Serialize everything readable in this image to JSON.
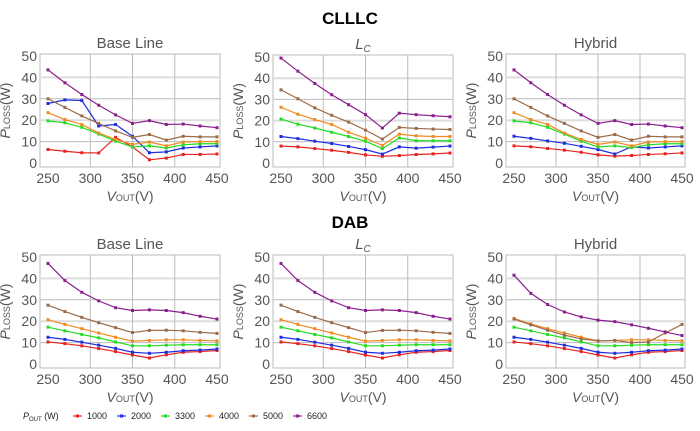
{
  "group_titles": [
    "CLLLC",
    "DAB"
  ],
  "legend": {
    "title_main": "P",
    "title_sub": "OUT",
    "title_unit": " (W)",
    "entries": [
      "1000",
      "2000",
      "3300",
      "4000",
      "5000",
      "6600"
    ],
    "colors": [
      "#e8211d",
      "#1f2de0",
      "#22dd22",
      "#f08a22",
      "#9a6b4a",
      "#8a1f8f"
    ],
    "placement": "bottom"
  },
  "chart_data": [
    {
      "type": "line",
      "group": "CLLLC",
      "title": "Base Line",
      "title_style": "plain",
      "xlabel_main": "V",
      "xlabel_sub": "OUT",
      "xlabel_unit": "(V)",
      "ylabel_main": "P",
      "ylabel_sub": "LOSS",
      "ylabel_unit": "(W)",
      "xlim": [
        250,
        450
      ],
      "ylim": [
        0,
        50
      ],
      "xticks": [
        250,
        300,
        350,
        400,
        450
      ],
      "yticks": [
        0,
        10,
        20,
        30,
        40,
        50
      ],
      "grid": true,
      "x": [
        250,
        270,
        290,
        310,
        330,
        350,
        370,
        390,
        410,
        430,
        450
      ],
      "series": [
        {
          "name": "1000",
          "values": [
            6.3,
            5.5,
            4.8,
            4.7,
            12,
            7.5,
            1.5,
            2.3,
            4,
            4,
            4.2
          ]
        },
        {
          "name": "2000",
          "values": [
            27.8,
            29.5,
            29.2,
            17.3,
            18,
            12.5,
            4.8,
            5.2,
            7,
            7.5,
            8
          ]
        },
        {
          "name": "3300",
          "values": [
            19.7,
            18.8,
            16.7,
            13.5,
            10.2,
            7.5,
            8,
            7,
            8.5,
            9,
            9
          ]
        },
        {
          "name": "4000",
          "values": [
            23.5,
            20.3,
            18,
            14,
            11,
            8.7,
            9.8,
            8,
            9.8,
            10,
            10
          ]
        },
        {
          "name": "5000",
          "values": [
            30,
            26,
            22,
            18.5,
            15,
            12,
            13.3,
            10.7,
            12.5,
            12.2,
            12.2
          ]
        },
        {
          "name": "6600",
          "values": [
            43.5,
            37.5,
            32,
            27,
            22.5,
            18.5,
            19.8,
            18,
            18.2,
            17.3,
            16.5
          ]
        }
      ]
    },
    {
      "type": "line",
      "group": "CLLLC",
      "title": "L",
      "title_sub": "C",
      "title_style": "italic",
      "xlabel_main": "V",
      "xlabel_sub": "OUT",
      "xlabel_unit": "(V)",
      "ylabel_main": "P",
      "ylabel_sub": "LOSS",
      "ylabel_unit": "(W)",
      "xlim": [
        250,
        450
      ],
      "ylim": [
        0,
        50
      ],
      "xticks": [
        250,
        300,
        350,
        400,
        450
      ],
      "yticks": [
        0,
        10,
        20,
        30,
        40,
        50
      ],
      "grid": true,
      "x": [
        250,
        270,
        290,
        310,
        330,
        350,
        370,
        390,
        410,
        430,
        450
      ],
      "series": [
        {
          "name": "1000",
          "values": [
            8,
            7.6,
            6.8,
            6,
            5,
            3.8,
            3.2,
            3.5,
            4,
            4.3,
            4.7
          ]
        },
        {
          "name": "2000",
          "values": [
            12.5,
            11.5,
            10.3,
            9.2,
            7.8,
            6.3,
            4.2,
            7.6,
            7,
            7.5,
            8
          ]
        },
        {
          "name": "3300",
          "values": [
            20.7,
            18.3,
            16.5,
            14.5,
            12.5,
            10.3,
            6.8,
            11.8,
            10.5,
            10.5,
            10.5
          ]
        },
        {
          "name": "4000",
          "values": [
            26.3,
            23,
            20.5,
            18.2,
            14.5,
            11.7,
            8.3,
            13.6,
            12.8,
            12.5,
            12.5
          ]
        },
        {
          "name": "5000",
          "values": [
            34.5,
            30.3,
            26,
            22.5,
            19.3,
            15.5,
            11.3,
            16.8,
            16.3,
            16,
            15.8
          ]
        },
        {
          "name": "6600",
          "values": [
            49.5,
            43.3,
            37.5,
            32.2,
            27.5,
            22.8,
            16.5,
            23.5,
            22.8,
            22.3,
            21.8
          ]
        }
      ]
    },
    {
      "type": "line",
      "group": "CLLLC",
      "title": "Hybrid",
      "title_style": "plain",
      "xlabel_main": "V",
      "xlabel_sub": "OUT",
      "xlabel_unit": "(V)",
      "ylabel_main": "P",
      "ylabel_sub": "LOSS",
      "ylabel_unit": "(W)",
      "xlim": [
        250,
        450
      ],
      "ylim": [
        0,
        50
      ],
      "xticks": [
        250,
        300,
        350,
        400,
        450
      ],
      "yticks": [
        0,
        10,
        20,
        30,
        40,
        50
      ],
      "grid": true,
      "x": [
        250,
        270,
        290,
        310,
        330,
        350,
        370,
        390,
        410,
        430,
        450
      ],
      "series": [
        {
          "name": "1000",
          "values": [
            8,
            7.6,
            6.8,
            6,
            5,
            3.8,
            3.2,
            3.5,
            4,
            4.3,
            4.7
          ]
        },
        {
          "name": "2000",
          "values": [
            12.5,
            11.5,
            10.3,
            9.2,
            7.8,
            6.3,
            4.2,
            7.6,
            7,
            7.5,
            8
          ]
        },
        {
          "name": "3300",
          "values": [
            19.7,
            18.8,
            16.7,
            13.5,
            10.2,
            7.5,
            8,
            7.2,
            8.5,
            9,
            9
          ]
        },
        {
          "name": "4000",
          "values": [
            23.5,
            20.3,
            18,
            14,
            11,
            8.7,
            9.8,
            8,
            9.8,
            10,
            10
          ]
        },
        {
          "name": "5000",
          "values": [
            30,
            26,
            22,
            18.5,
            15,
            12,
            13.3,
            10.7,
            12.5,
            12.2,
            12.2
          ]
        },
        {
          "name": "6600",
          "values": [
            43.5,
            37.5,
            32,
            27,
            22.5,
            18.5,
            19.8,
            18,
            18.2,
            17.3,
            16.5
          ]
        }
      ]
    },
    {
      "type": "line",
      "group": "DAB",
      "title": "Base Line",
      "title_style": "plain",
      "xlabel_main": "V",
      "xlabel_sub": "OUT",
      "xlabel_unit": "(V)",
      "ylabel_main": "P",
      "ylabel_sub": "LOSS",
      "ylabel_unit": "(W)",
      "xlim": [
        250,
        450
      ],
      "ylim": [
        0,
        50
      ],
      "xticks": [
        250,
        300,
        350,
        400,
        450
      ],
      "yticks": [
        0,
        10,
        20,
        30,
        40,
        50
      ],
      "grid": true,
      "x": [
        250,
        270,
        290,
        310,
        330,
        350,
        370,
        390,
        410,
        430,
        450
      ],
      "series": [
        {
          "name": "1000",
          "values": [
            10.3,
            9.5,
            8.5,
            7.2,
            5.8,
            4.2,
            2.8,
            4.3,
            5.5,
            5.8,
            6.3
          ]
        },
        {
          "name": "2000",
          "values": [
            12.5,
            11.5,
            10.2,
            8.8,
            7.3,
            5.5,
            5,
            5.5,
            6.2,
            6.5,
            7
          ]
        },
        {
          "name": "3300",
          "values": [
            17.2,
            15.5,
            13.8,
            12.2,
            10.3,
            8.5,
            8.5,
            8.8,
            9,
            9,
            9
          ]
        },
        {
          "name": "4000",
          "values": [
            20.7,
            18.5,
            16.5,
            14.5,
            12.5,
            10.7,
            11,
            11.3,
            11.3,
            11,
            10.8
          ]
        },
        {
          "name": "5000",
          "values": [
            27.5,
            24.5,
            21.8,
            19.3,
            17,
            14.7,
            15.7,
            15.8,
            15.5,
            14.8,
            14.3
          ]
        },
        {
          "name": "6600",
          "values": [
            47,
            39,
            33.5,
            29.5,
            26.3,
            25,
            25.3,
            25,
            24,
            22.3,
            21
          ]
        }
      ]
    },
    {
      "type": "line",
      "group": "DAB",
      "title": "L",
      "title_sub": "C",
      "title_style": "italic",
      "xlabel_main": "V",
      "xlabel_sub": "OUT",
      "xlabel_unit": "(V)",
      "ylabel_main": "P",
      "ylabel_sub": "LOSS",
      "ylabel_unit": "(W)",
      "xlim": [
        250,
        450
      ],
      "ylim": [
        0,
        50
      ],
      "xticks": [
        250,
        300,
        350,
        400,
        450
      ],
      "yticks": [
        0,
        10,
        20,
        30,
        40,
        50
      ],
      "grid": true,
      "x": [
        250,
        270,
        290,
        310,
        330,
        350,
        370,
        390,
        410,
        430,
        450
      ],
      "series": [
        {
          "name": "1000",
          "values": [
            10.3,
            9.5,
            8.5,
            7.2,
            5.8,
            4.2,
            2.8,
            4.3,
            5.5,
            5.8,
            6.3
          ]
        },
        {
          "name": "2000",
          "values": [
            12.5,
            11.5,
            10.2,
            8.8,
            7.3,
            5.5,
            5,
            5.5,
            6.2,
            6.5,
            7
          ]
        },
        {
          "name": "3300",
          "values": [
            17.2,
            15.5,
            13.8,
            12.2,
            10.3,
            8.5,
            8.5,
            8.8,
            9,
            9,
            9
          ]
        },
        {
          "name": "4000",
          "values": [
            20.7,
            18.5,
            16.5,
            14.5,
            12.5,
            10.7,
            11,
            11.3,
            11.3,
            11,
            10.8
          ]
        },
        {
          "name": "5000",
          "values": [
            27.5,
            24.5,
            21.8,
            19.3,
            17,
            14.7,
            15.7,
            15.8,
            15.5,
            14.8,
            14.3
          ]
        },
        {
          "name": "6600",
          "values": [
            47,
            39,
            33.5,
            29.5,
            26.3,
            25,
            25.3,
            25,
            24,
            22.3,
            21
          ]
        }
      ]
    },
    {
      "type": "line",
      "group": "DAB",
      "title": "Hybrid",
      "title_style": "plain",
      "xlabel_main": "V",
      "xlabel_sub": "OUT",
      "xlabel_unit": "(V)",
      "ylabel_main": "P",
      "ylabel_sub": "LOSS",
      "ylabel_unit": "(W)",
      "xlim": [
        250,
        450
      ],
      "ylim": [
        0,
        50
      ],
      "xticks": [
        250,
        300,
        350,
        400,
        450
      ],
      "yticks": [
        0,
        10,
        20,
        30,
        40,
        50
      ],
      "grid": true,
      "x": [
        250,
        270,
        290,
        310,
        330,
        350,
        370,
        390,
        410,
        430,
        450
      ],
      "series": [
        {
          "name": "1000",
          "values": [
            10.3,
            9.5,
            8.5,
            7.2,
            5.8,
            4.2,
            2.8,
            4.3,
            5.5,
            5.8,
            6.3
          ]
        },
        {
          "name": "2000",
          "values": [
            12.5,
            11.5,
            10.2,
            8.8,
            7.3,
            5.5,
            5,
            5.5,
            6.2,
            6.5,
            7
          ]
        },
        {
          "name": "3300",
          "values": [
            17.2,
            15.5,
            13.8,
            12.2,
            10.3,
            8.5,
            8.5,
            8.8,
            9,
            9,
            9
          ]
        },
        {
          "name": "4000",
          "values": [
            21.3,
            18.7,
            16.5,
            14.5,
            12.5,
            10.8,
            11,
            11.3,
            11.3,
            11,
            10.8
          ]
        },
        {
          "name": "5000",
          "values": [
            21,
            18.3,
            15.8,
            13.5,
            11.7,
            10.8,
            11,
            10,
            10.3,
            14.5,
            18.5
          ]
        },
        {
          "name": "6600",
          "values": [
            41.5,
            33,
            27.8,
            24.3,
            22,
            20.5,
            19.8,
            18.3,
            16.7,
            15,
            13.3
          ]
        }
      ]
    }
  ]
}
